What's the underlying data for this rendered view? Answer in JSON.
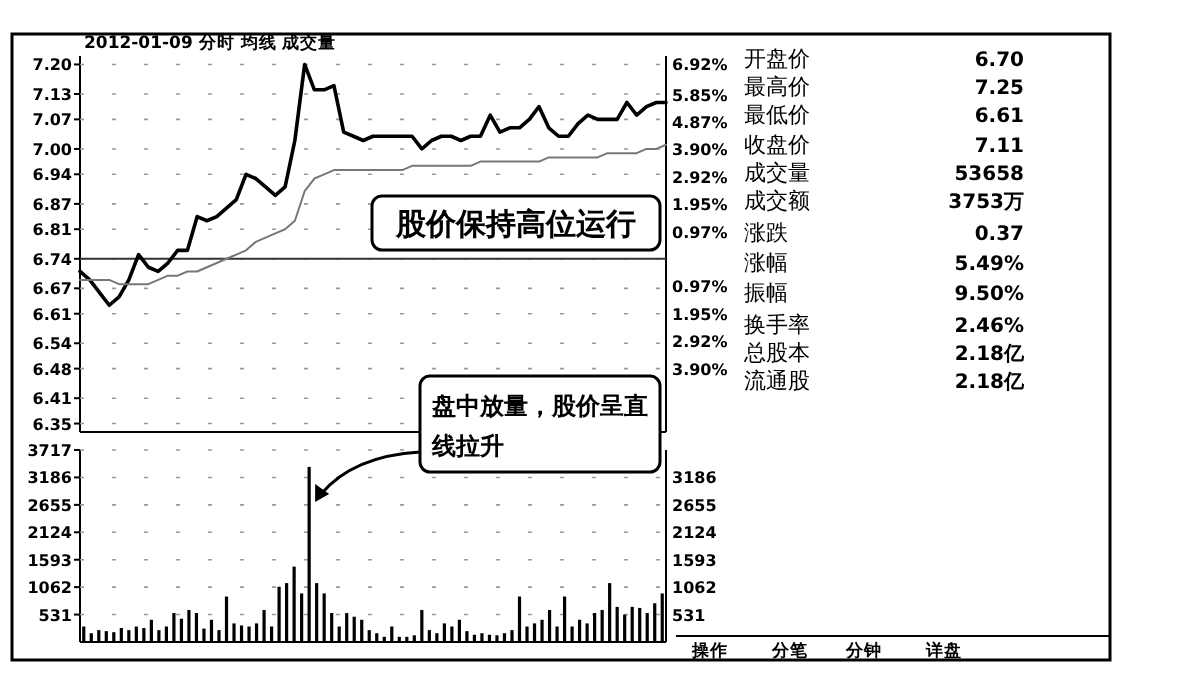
{
  "chart_data": [
    {
      "type": "line",
      "title": "2012-01-09 分时 均线 成交量",
      "ylim": [
        6.33,
        7.22
      ],
      "y2lim": [
        -6.15,
        7.22
      ],
      "tick_labels": "y",
      "grid": "y",
      "categories": [
        null,
        null,
        null,
        null,
        null,
        null,
        null,
        null,
        null,
        null,
        null,
        null,
        null,
        null,
        null,
        null,
        null,
        null,
        null,
        null,
        null,
        null,
        null,
        null,
        null,
        null,
        null,
        null,
        null,
        null,
        null,
        null,
        null,
        null,
        null,
        null,
        null,
        null,
        null,
        null,
        null,
        null,
        null,
        null,
        null,
        null,
        null,
        null,
        null,
        null,
        null,
        null,
        null,
        null,
        null,
        null,
        null,
        null,
        null,
        null,
        null
      ],
      "yticks": [
        {
          "value": 7.2,
          "label": "7.20"
        },
        {
          "value": 7.13,
          "label": "7.13"
        },
        {
          "value": 7.07,
          "label": "7.07"
        },
        {
          "value": 7.0,
          "label": "7.00"
        },
        {
          "value": 6.94,
          "label": "6.94"
        },
        {
          "value": 6.87,
          "label": "6.87"
        },
        {
          "value": 6.81,
          "label": "6.81"
        },
        {
          "value": 6.74,
          "label": "6.74"
        },
        {
          "value": 6.67,
          "label": "6.67"
        },
        {
          "value": 6.61,
          "label": "6.61"
        },
        {
          "value": 6.54,
          "label": "6.54"
        },
        {
          "value": 6.48,
          "label": "6.48"
        },
        {
          "value": 6.41,
          "label": "6.41"
        },
        {
          "value": 6.35,
          "label": "6.35"
        }
      ],
      "y2ticks": [
        {
          "value": 6.92,
          "label": "6.92%"
        },
        {
          "value": 5.85,
          "label": "5.85%"
        },
        {
          "value": 4.87,
          "label": "4.87%"
        },
        {
          "value": 3.9,
          "label": "3.90%"
        },
        {
          "value": 2.92,
          "label": "2.92%"
        },
        {
          "value": 1.95,
          "label": "1.95%"
        },
        {
          "value": 0.97,
          "label": "0.97%"
        },
        {
          "value": -0.97,
          "label": "0.97%"
        },
        {
          "value": -1.95,
          "label": "1.95%"
        },
        {
          "value": -2.92,
          "label": "2.92%"
        },
        {
          "value": -3.9,
          "label": "3.90%"
        }
      ],
      "ref_lines": [
        {
          "axis": "y",
          "value": 6.74,
          "color": "#333333"
        }
      ],
      "series": [
        {
          "color": "#000000",
          "values": [
            6.71,
            6.69,
            6.66,
            6.63,
            6.65,
            6.69,
            6.75,
            6.72,
            6.71,
            6.73,
            6.76,
            6.76,
            6.84,
            6.83,
            6.84,
            6.86,
            6.88,
            6.94,
            6.93,
            6.91,
            6.89,
            6.91,
            7.02,
            7.2,
            7.14,
            7.14,
            7.15,
            7.04,
            7.03,
            7.02,
            7.03,
            7.03,
            7.03,
            7.03,
            7.03,
            7.0,
            7.02,
            7.03,
            7.03,
            7.02,
            7.03,
            7.03,
            7.08,
            7.04,
            7.05,
            7.05,
            7.07,
            7.1,
            7.05,
            7.03,
            7.03,
            7.06,
            7.08,
            7.07,
            7.07,
            7.07,
            7.11,
            7.08,
            7.1,
            7.11,
            7.11
          ]
        },
        {
          "color": "#777777",
          "values": [
            6.69,
            6.69,
            6.69,
            6.69,
            6.68,
            6.68,
            6.68,
            6.68,
            6.69,
            6.7,
            6.7,
            6.71,
            6.71,
            6.72,
            6.73,
            6.74,
            6.75,
            6.76,
            6.78,
            6.79,
            6.8,
            6.81,
            6.83,
            6.9,
            6.93,
            6.94,
            6.95,
            6.95,
            6.95,
            6.95,
            6.95,
            6.95,
            6.95,
            6.95,
            6.96,
            6.96,
            6.96,
            6.96,
            6.96,
            6.96,
            6.96,
            6.97,
            6.97,
            6.97,
            6.97,
            6.97,
            6.97,
            6.97,
            6.98,
            6.98,
            6.98,
            6.98,
            6.98,
            6.98,
            6.99,
            6.99,
            6.99,
            6.99,
            7.0,
            7.0,
            7.01
          ]
        }
      ],
      "annotations": [
        "股价保持高位运行"
      ]
    },
    {
      "type": "bar",
      "color": "#000000",
      "ylim": [
        0,
        3717
      ],
      "y2lim": [
        0,
        3717
      ],
      "tick_labels": "y",
      "grid": "y",
      "yticks": [
        531,
        1062,
        1593,
        2124,
        2655,
        3186,
        3717
      ],
      "y2ticks": [
        531,
        1062,
        1593,
        2124,
        2655,
        3186
      ],
      "categories": [
        null,
        null,
        null,
        null,
        null,
        null,
        null,
        null,
        null,
        null,
        null,
        null,
        null,
        null,
        null,
        null,
        null,
        null,
        null,
        null,
        null,
        null,
        null,
        null,
        null,
        null,
        null,
        null,
        null,
        null,
        null,
        null,
        null,
        null,
        null,
        null,
        null,
        null,
        null,
        null,
        null,
        null,
        null,
        null,
        null,
        null,
        null,
        null,
        null,
        null,
        null,
        null,
        null,
        null,
        null,
        null,
        null,
        null,
        null,
        null,
        null,
        null,
        null,
        null,
        null,
        null,
        null,
        null,
        null,
        null,
        null,
        null,
        null,
        null,
        null,
        null,
        null,
        null
      ],
      "values": [
        300,
        170,
        230,
        210,
        190,
        270,
        230,
        300,
        270,
        430,
        230,
        300,
        560,
        450,
        620,
        560,
        260,
        430,
        230,
        880,
        360,
        320,
        300,
        360,
        620,
        300,
        1070,
        1140,
        1460,
        940,
        3390,
        1140,
        940,
        560,
        300,
        560,
        490,
        430,
        230,
        170,
        100,
        300,
        100,
        100,
        130,
        620,
        230,
        170,
        360,
        300,
        430,
        210,
        140,
        170,
        140,
        130,
        170,
        230,
        880,
        300,
        360,
        430,
        620,
        300,
        880,
        300,
        430,
        360,
        560,
        620,
        1140,
        680,
        530,
        680,
        660,
        560,
        750,
        940
      ],
      "annotations": [
        "盘中放量，股价呈直线拉升"
      ]
    },
    {
      "type": "other",
      "categories": [
        "开盘价",
        "最高价",
        "最低价",
        "收盘价",
        "成交量",
        "成交额",
        "涨跌",
        "涨幅",
        "振幅",
        "换手率",
        "总股本",
        "流通股"
      ],
      "value_labels": [
        "6.70",
        "7.25",
        "6.61",
        "7.11",
        "53658",
        "3753万",
        "0.37",
        "5.49%",
        "9.50%",
        "2.46%",
        "2.18亿",
        "2.18亿"
      ],
      "annotations": [
        "操作",
        "分笔",
        "分钟",
        "详盘"
      ]
    }
  ]
}
